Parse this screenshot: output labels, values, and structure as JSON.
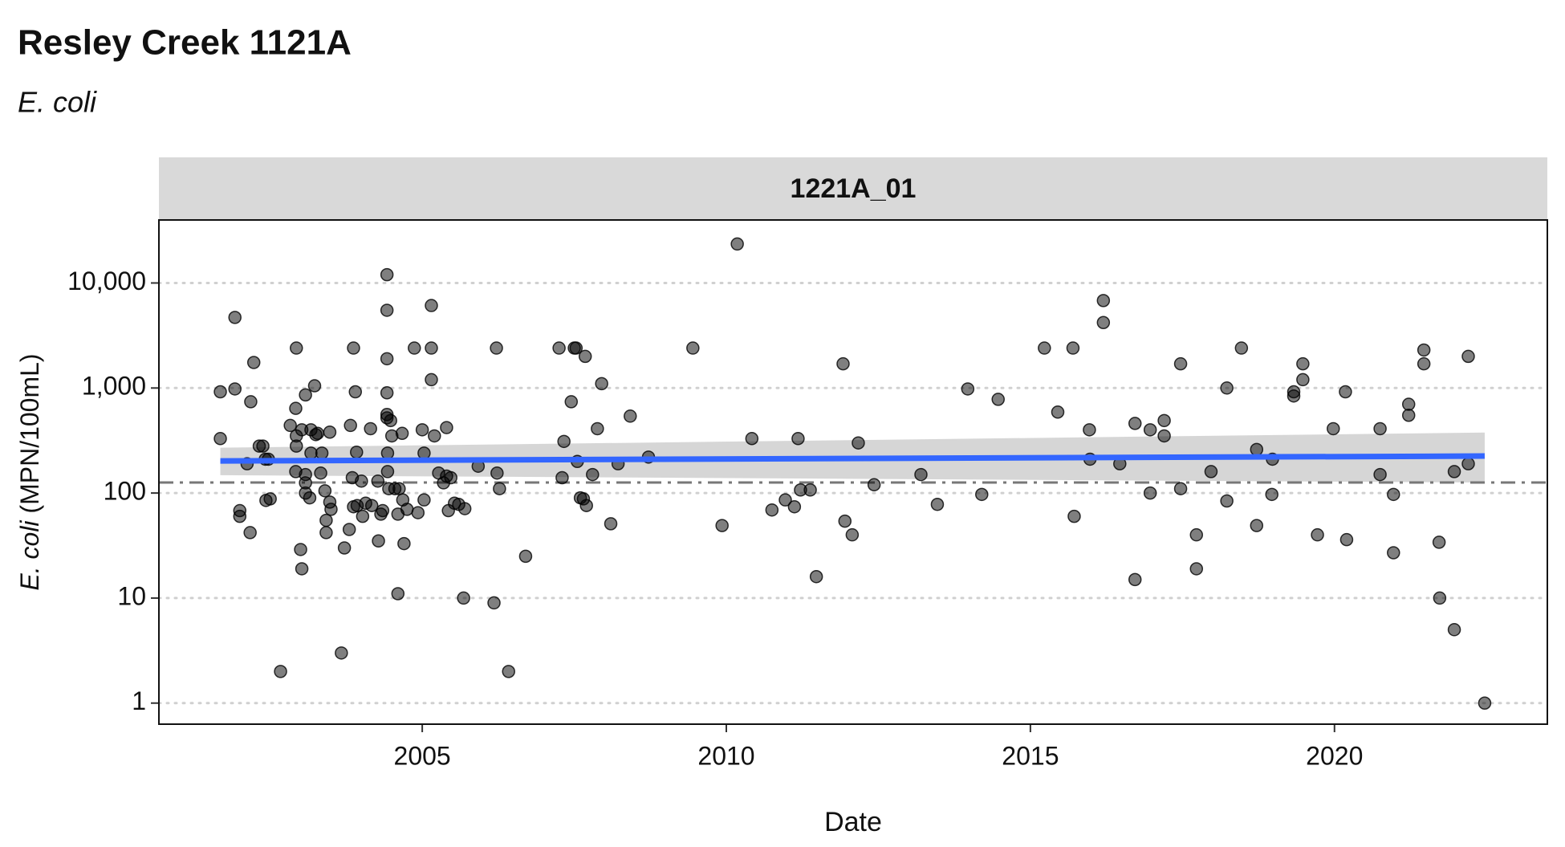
{
  "chart_data": {
    "type": "scatter",
    "title": "Resley Creek 1121A",
    "subtitle": "E. coli",
    "facet": "1221A_01",
    "xlabel": "Date",
    "ylabel": {
      "italic": "E. coli",
      "rest": " (MPN/100mL)"
    },
    "log_y": true,
    "grid": true,
    "color": "#000000",
    "xlim": [
      2000.67,
      2023.5
    ],
    "xticks": [
      2005,
      2010,
      2015,
      2020
    ],
    "ylim": [
      0.63,
      39800
    ],
    "yticks": [
      1,
      10,
      100,
      {
        "value": 1000,
        "label": "1,000"
      },
      {
        "value": 10000,
        "label": "10,000"
      }
    ],
    "reference_line": 126,
    "trend": {
      "color": "#3366ff",
      "x": [
        2001.68,
        2022.47
      ],
      "values": [
        202,
        225
      ],
      "lower": [
        148,
        126
      ],
      "upper": [
        270,
        377
      ]
    },
    "x": [
      2001.68,
      2001.68,
      2001.92,
      2001.92,
      2002.0,
      2002.0,
      2002.12,
      2002.18,
      2002.17,
      2002.23,
      2002.32,
      2002.38,
      2002.42,
      2002.47,
      2002.43,
      2002.5,
      2002.67,
      2002.83,
      2002.92,
      2002.93,
      2002.92,
      2002.93,
      2002.93,
      2003.0,
      2003.02,
      2003.02,
      2003.08,
      2003.08,
      2003.08,
      2003.08,
      2003.15,
      2003.17,
      2003.17,
      2003.23,
      2003.25,
      2003.28,
      2003.33,
      2003.35,
      2003.4,
      2003.42,
      2003.42,
      2003.48,
      2003.5,
      2003.48,
      2003.67,
      2003.72,
      2003.8,
      2003.82,
      2003.87,
      2003.87,
      2003.85,
      2003.9,
      2003.92,
      2003.93,
      2004.0,
      2004.02,
      2004.07,
      2004.15,
      2004.17,
      2004.27,
      2004.28,
      2004.32,
      2004.35,
      2004.42,
      2004.42,
      2004.42,
      2004.42,
      2004.42,
      2004.43,
      2004.43,
      2004.45,
      2004.42,
      2004.48,
      2004.5,
      2004.55,
      2004.6,
      2004.6,
      2004.62,
      2004.67,
      2004.68,
      2004.7,
      2004.75,
      2004.87,
      2004.93,
      2005.0,
      2005.03,
      2005.03,
      2005.15,
      2005.15,
      2005.15,
      2005.2,
      2005.27,
      2005.35,
      2005.4,
      2005.43,
      2005.4,
      2005.47,
      2005.53,
      2005.6,
      2005.68,
      2005.7,
      2005.92,
      2006.18,
      2006.22,
      2006.23,
      2006.27,
      2006.42,
      2006.7,
      2007.25,
      2007.33,
      2007.3,
      2007.45,
      2007.5,
      2007.53,
      2007.55,
      2007.6,
      2007.65,
      2007.68,
      2007.7,
      2007.8,
      2007.88,
      2007.95,
      2008.1,
      2008.22,
      2008.42,
      2008.72,
      2009.45,
      2009.93,
      2010.18,
      2010.42,
      2010.75,
      2010.97,
      2011.12,
      2011.18,
      2011.22,
      2011.38,
      2011.48,
      2011.92,
      2011.95,
      2012.07,
      2012.17,
      2012.43,
      2013.2,
      2013.47,
      2013.97,
      2014.2,
      2014.47,
      2015.23,
      2015.45,
      2015.7,
      2015.72,
      2015.97,
      2015.98,
      2016.2,
      2016.2,
      2016.47,
      2016.72,
      2016.72,
      2016.97,
      2016.97,
      2017.2,
      2017.2,
      2017.47,
      2017.47,
      2017.73,
      2017.73,
      2017.97,
      2018.23,
      2018.23,
      2018.47,
      2018.72,
      2018.72,
      2018.97,
      2018.98,
      2019.33,
      2019.33,
      2019.48,
      2019.48,
      2019.72,
      2019.98,
      2020.18,
      2020.2,
      2020.75,
      2020.75,
      2020.97,
      2020.97,
      2021.22,
      2021.22,
      2021.47,
      2021.47,
      2021.72,
      2021.73,
      2021.97,
      2021.97,
      2022.2,
      2022.2,
      2022.47
    ],
    "values": [
      330,
      920,
      4700,
      980,
      68,
      60,
      190,
      740,
      42,
      1750,
      280,
      280,
      210,
      210,
      85,
      88,
      2,
      440,
      640,
      2400,
      160,
      280,
      350,
      29,
      19,
      400,
      860,
      150,
      125,
      100,
      90,
      400,
      240,
      1050,
      360,
      370,
      155,
      240,
      105,
      55,
      42,
      380,
      70,
      82,
      3,
      30,
      45,
      440,
      2400,
      74,
      140,
      920,
      245,
      76,
      130,
      60,
      80,
      410,
      76,
      130,
      35,
      63,
      68,
      12000,
      5500,
      1900,
      900,
      560,
      240,
      160,
      110,
      520,
      490,
      350,
      110,
      11,
      63,
      110,
      370,
      86,
      33,
      70,
      2400,
      65,
      400,
      240,
      86,
      6100,
      2400,
      1200,
      350,
      155,
      125,
      420,
      68,
      145,
      140,
      80,
      78,
      10,
      71,
      180,
      9,
      2400,
      155,
      110,
      2,
      25,
      2400,
      310,
      140,
      740,
      2400,
      2400,
      200,
      90,
      88,
      2000,
      76,
      150,
      410,
      1100,
      51,
      190,
      540,
      220,
      2400,
      49,
      23500,
      330,
      69,
      86,
      74,
      330,
      107,
      107,
      16,
      1700,
      54,
      40,
      300,
      120,
      150,
      78,
      980,
      97,
      780,
      2400,
      590,
      2400,
      60,
      400,
      210,
      6800,
      4200,
      190,
      15,
      460,
      400,
      100,
      490,
      350,
      1700,
      110,
      40,
      19,
      160,
      1000,
      84,
      2400,
      49,
      260,
      97,
      210,
      920,
      840,
      1700,
      1200,
      40,
      410,
      920,
      36,
      410,
      150,
      97,
      27,
      700,
      550,
      2300,
      1700,
      34,
      10,
      5,
      160,
      2000,
      190,
      1
    ]
  }
}
